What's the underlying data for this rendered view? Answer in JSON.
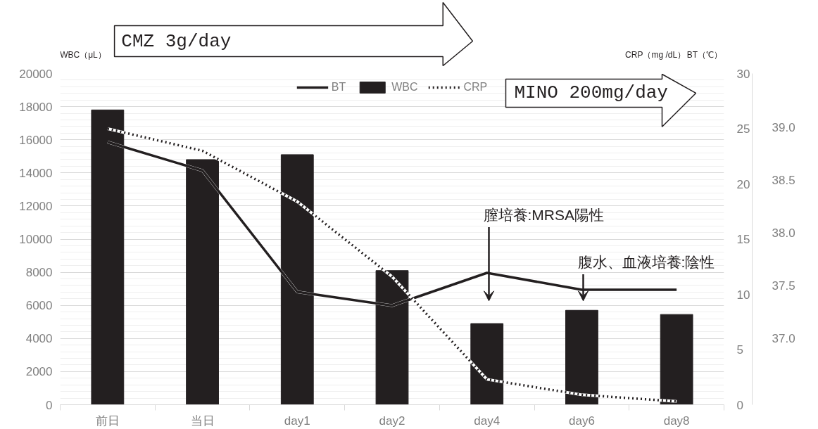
{
  "chart_data": {
    "type": "bar",
    "categories": [
      "前日",
      "当日",
      "day1",
      "day2",
      "day4",
      "day6",
      "day8"
    ],
    "series": [
      {
        "name": "BT",
        "type": "line",
        "axis": "y3",
        "color": "#231f20",
        "line_style": "solid",
        "values": [
          38.86,
          38.59,
          37.44,
          37.31,
          37.62,
          37.46,
          37.46
        ]
      },
      {
        "name": "WBC",
        "color": "#231f20",
        "values": [
          17800,
          14800,
          15100,
          8100,
          4900,
          5700,
          5450
        ]
      },
      {
        "name": "CRP",
        "type": "line",
        "axis": "y2",
        "color": "#231f20",
        "line_style": "dotted",
        "values": [
          25,
          23,
          18.4,
          11.6,
          2.3,
          0.9,
          0.3
        ]
      }
    ],
    "ylabel": "WBC（μL）",
    "y2label": "CRP（mg /dL）",
    "y3label": "BT（℃）",
    "ylim": [
      0,
      20000
    ],
    "yticks": [
      0,
      2000,
      4000,
      6000,
      8000,
      10000,
      12000,
      14000,
      16000,
      18000,
      20000
    ],
    "y2lim": [
      0,
      30
    ],
    "y2ticks": [
      0,
      5,
      10,
      15,
      20,
      25,
      30
    ],
    "y3lim": [
      36.37,
      39.51
    ],
    "y3ticks": [
      {
        "value": 37,
        "label": "37.0"
      },
      {
        "value": 37.5,
        "label": "37.5"
      },
      {
        "value": 38,
        "label": "38.0"
      },
      {
        "value": 38.5,
        "label": "38.5"
      },
      {
        "value": 39,
        "label": "39.0"
      }
    ],
    "grid": "y",
    "legend": "top",
    "annotations": [
      "CMZ 3g/day",
      "MINO 200mg/day",
      "膣培養:MRSA陽性",
      "腹水、血液培養:陰性"
    ]
  }
}
